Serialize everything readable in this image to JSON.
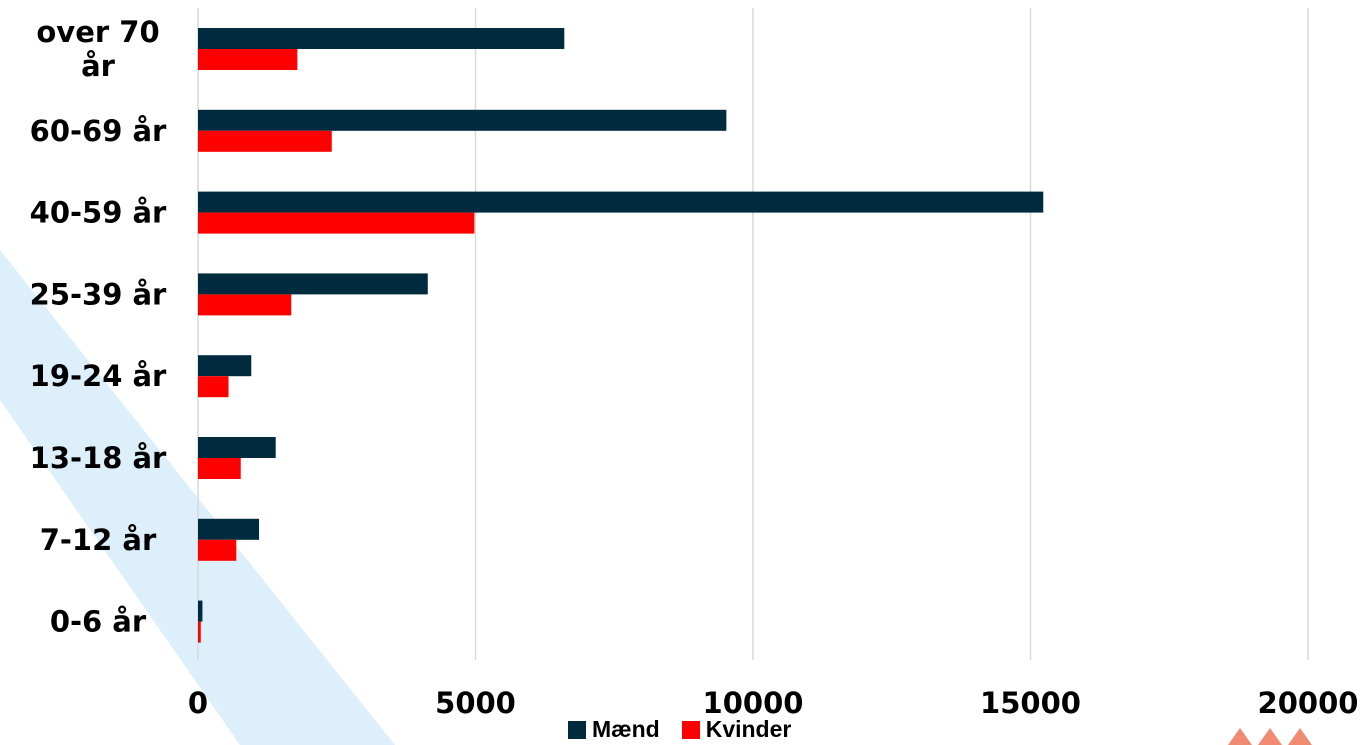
{
  "chart_data": {
    "type": "bar",
    "orientation": "horizontal",
    "categories": [
      "over 70 år",
      "60-69 år",
      "40-59 år",
      "25-39 år",
      "19-24 år",
      "13-18 år",
      "7-12 år",
      "0-6 år"
    ],
    "category_lines": [
      [
        "over 70",
        "år"
      ],
      [
        "60-69 år"
      ],
      [
        "40-59 år"
      ],
      [
        "25-39 år"
      ],
      [
        "19-24 år"
      ],
      [
        "13-18 år"
      ],
      [
        "7-12 år"
      ],
      [
        "0-6 år"
      ]
    ],
    "series": [
      {
        "name": "Mænd",
        "color": "#002B3F",
        "values": [
          6600,
          9520,
          15230,
          4140,
          960,
          1400,
          1100,
          80
        ]
      },
      {
        "name": "Kvinder",
        "color": "#FF0000",
        "values": [
          1790,
          2410,
          4980,
          1680,
          550,
          770,
          690,
          50
        ]
      }
    ],
    "xlim": [
      0,
      20000
    ],
    "xticks": [
      "0",
      "5000",
      "10000",
      "15000",
      "20000"
    ],
    "grid": true,
    "legend_position": "bottom",
    "title": "",
    "xlabel": "",
    "ylabel": ""
  }
}
